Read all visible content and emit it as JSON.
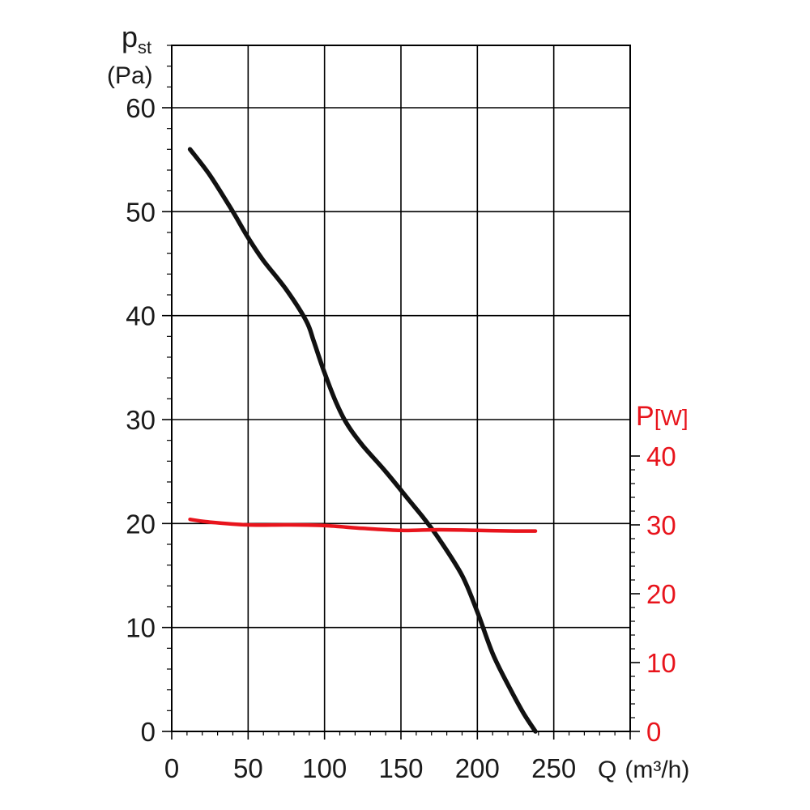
{
  "chart_data": {
    "type": "line",
    "x_axis": {
      "label": "Q",
      "unit": "(m³/h)",
      "range": [
        0,
        300
      ],
      "ticks": [
        "0",
        "50",
        "100",
        "150",
        "200",
        "250"
      ]
    },
    "y_axis_left": {
      "label": "p",
      "label_sub": "st",
      "unit": "(Pa)",
      "range": [
        0,
        66
      ],
      "ticks": [
        "0",
        "10",
        "20",
        "30",
        "40",
        "50",
        "60"
      ]
    },
    "y_axis_right": {
      "label": "P",
      "unit": "[W]",
      "range": [
        0,
        40
      ],
      "ticks": [
        "0",
        "10",
        "20",
        "30",
        "40"
      ],
      "color": "#e8141c"
    },
    "grid": true,
    "series": [
      {
        "axis": "left",
        "color": "#111111",
        "x": [
          12,
          25,
          40,
          50,
          60,
          75,
          88,
          93,
          100,
          108,
          115,
          125,
          140,
          155,
          165,
          175,
          190,
          200,
          210,
          220,
          230,
          238
        ],
        "y": [
          56,
          53.5,
          50,
          47.5,
          45.3,
          42.5,
          39.5,
          37.5,
          34.5,
          31.5,
          29.5,
          27.5,
          25,
          22.3,
          20.5,
          18.5,
          15,
          11.5,
          7.5,
          4.5,
          1.8,
          0
        ]
      },
      {
        "axis": "right",
        "color": "#e8141c",
        "x": [
          12,
          25,
          50,
          75,
          100,
          125,
          150,
          175,
          200,
          225,
          238
        ],
        "y": [
          30.8,
          30.4,
          30.0,
          30.0,
          29.9,
          29.5,
          29.2,
          29.3,
          29.2,
          29.1,
          29.1
        ]
      }
    ]
  }
}
